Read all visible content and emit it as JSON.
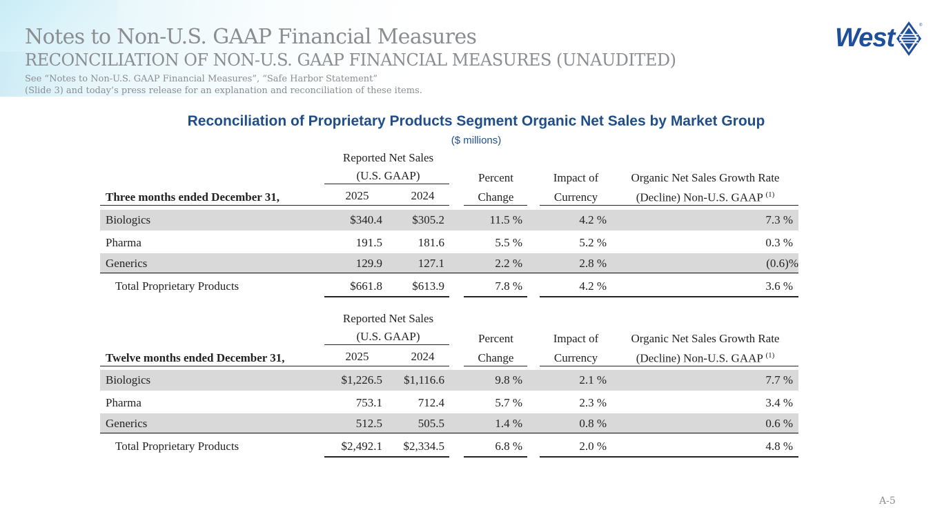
{
  "header": {
    "title": "Notes to Non-U.S. GAAP Financial Measures",
    "subtitle": "RECONCILIATION OF NON-U.S. GAAP FINANCIAL MEASURES (UNAUDITED)",
    "note_line1": "See “Notes to Non-U.S. GAAP Financial Measures”, “Safe Harbor Statement”",
    "note_line2": "(Slide 3) and today’s press release for an explanation and reconciliation of these items."
  },
  "logo": {
    "text": "West",
    "reg": "®"
  },
  "table_title": "Reconciliation of Proprietary Products Segment Organic Net Sales by Market Group",
  "units": "($ millions)",
  "columns": {
    "reported_line1": "Reported Net Sales",
    "reported_line2": "(U.S. GAAP)",
    "pct_line1": "Percent",
    "pct_line2": "Change",
    "fx_line1": "Impact of",
    "fx_line2": "Currency",
    "org_line1": "Organic Net Sales Growth Rate",
    "org_line2": "(Decline) Non-U.S. GAAP",
    "org_sup": "(1)"
  },
  "sections": [
    {
      "period_label": "Three months ended December 31,",
      "year1": "2025",
      "year2": "2024",
      "rows": [
        {
          "label": "Biologics",
          "y1": "$340.4",
          "y2": "$305.2",
          "pct": "11.5 %",
          "fx": "4.2 %",
          "org": "7.3 %"
        },
        {
          "label": "Pharma",
          "y1": "191.5",
          "y2": "181.6",
          "pct": "5.5 %",
          "fx": "5.2 %",
          "org": "0.3 %"
        },
        {
          "label": "Generics",
          "y1": "129.9",
          "y2": "127.1",
          "pct": "2.2 %",
          "fx": "2.8 %",
          "org": "(0.6)%"
        },
        {
          "label": "Total Proprietary Products",
          "y1": "$661.8",
          "y2": "$613.9",
          "pct": "7.8 %",
          "fx": "4.2 %",
          "org": "3.6 %"
        }
      ]
    },
    {
      "period_label": "Twelve months ended December 31,",
      "year1": "2025",
      "year2": "2024",
      "rows": [
        {
          "label": "Biologics",
          "y1": "$1,226.5",
          "y2": "$1,116.6",
          "pct": "9.8 %",
          "fx": "2.1 %",
          "org": "7.7 %"
        },
        {
          "label": "Pharma",
          "y1": "753.1",
          "y2": "712.4",
          "pct": "5.7 %",
          "fx": "2.3 %",
          "org": "3.4 %"
        },
        {
          "label": "Generics",
          "y1": "512.5",
          "y2": "505.5",
          "pct": "1.4 %",
          "fx": "0.8 %",
          "org": "0.6 %"
        },
        {
          "label": "Total Proprietary Products",
          "y1": "$2,492.1",
          "y2": "$2,334.5",
          "pct": "6.8 %",
          "fx": "2.0 %",
          "org": "4.8 %"
        }
      ]
    }
  ],
  "page_number": "A-5"
}
